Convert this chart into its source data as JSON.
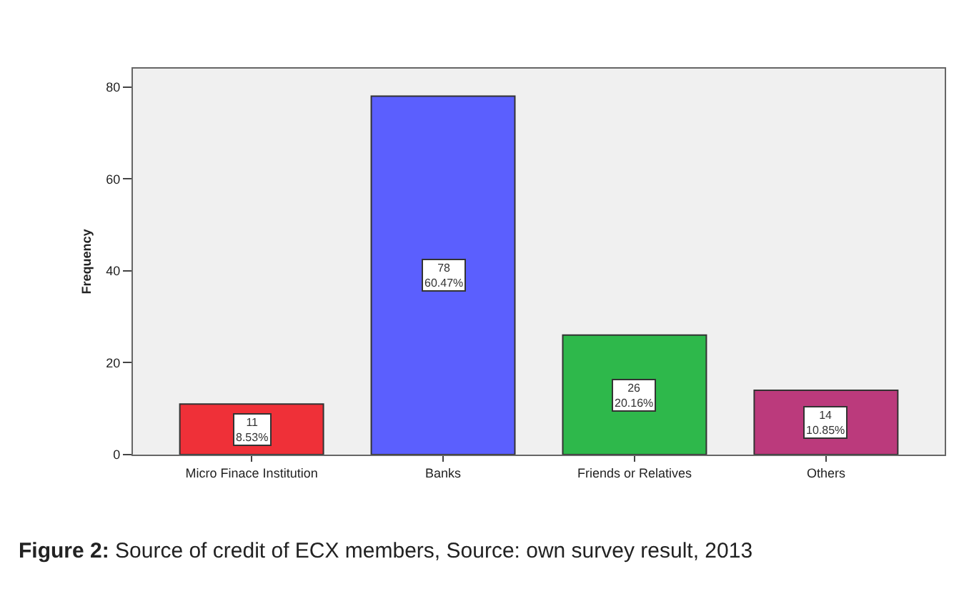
{
  "chart_data": {
    "type": "bar",
    "ylabel": "Frequency",
    "categories": [
      "Micro Finace Institution",
      "Banks",
      "Friends or Relatives",
      "Others"
    ],
    "values": [
      11,
      78,
      26,
      14
    ],
    "colors": [
      "#ef3038",
      "#5b5ffe",
      "#2eb84b",
      "#bb3a7c"
    ],
    "value_labels": [
      "11\n8.53%",
      "78\n60.47%",
      "26\n20.16%",
      "14\n10.85%"
    ],
    "ylim": [
      0,
      84
    ],
    "yticks": [
      0,
      20,
      40,
      60,
      80
    ],
    "grid": false,
    "legend": false,
    "annotations": [
      "Figure 2: Source of credit of ECX members, Source: own survey result, 2013"
    ]
  }
}
